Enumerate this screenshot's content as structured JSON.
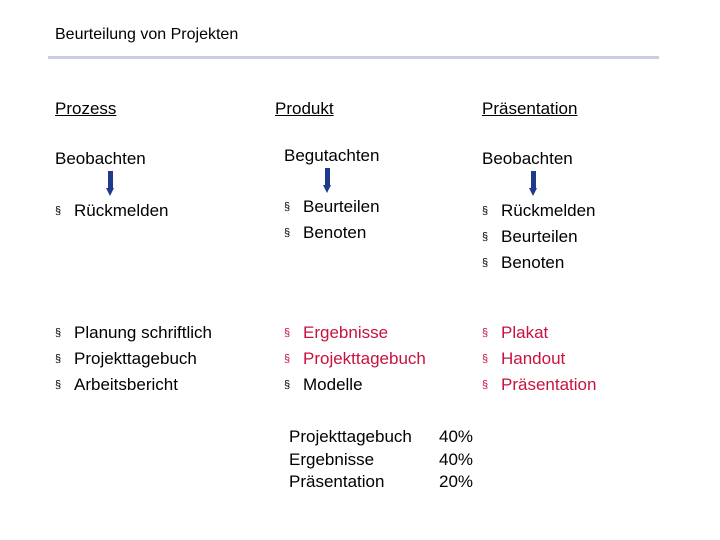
{
  "title": "Beurteilung von Projekten",
  "bullet_symbol": "§",
  "columns": [
    {
      "heading": "Prozess",
      "action": "Beobachten",
      "items": [
        "Rückmelden"
      ],
      "criteria": [
        "Planung schriftlich",
        "Projekttagebuch",
        "Arbeitsbericht"
      ]
    },
    {
      "heading": "Produkt",
      "action": "Begutachten",
      "items": [
        "Beurteilen",
        "Benoten"
      ],
      "criteria": [
        "Ergebnisse",
        "Projekttagebuch",
        "Modelle"
      ]
    },
    {
      "heading": "Präsentation",
      "action": "Beobachten",
      "items": [
        "Rückmelden",
        "Beurteilen",
        "Benoten"
      ],
      "criteria": [
        "Plakat",
        "Handout",
        "Präsentation"
      ]
    }
  ],
  "weights": [
    {
      "label": "Projekttagebuch",
      "percent": "40%"
    },
    {
      "label": "Ergebnisse",
      "percent": "40%"
    },
    {
      "label": "Präsentation",
      "percent": "20%"
    }
  ],
  "colors": {
    "text": "#000000",
    "criteria_text": "#c8123f",
    "arrow": "#1f3a8a",
    "rule": "#c9cde3"
  }
}
